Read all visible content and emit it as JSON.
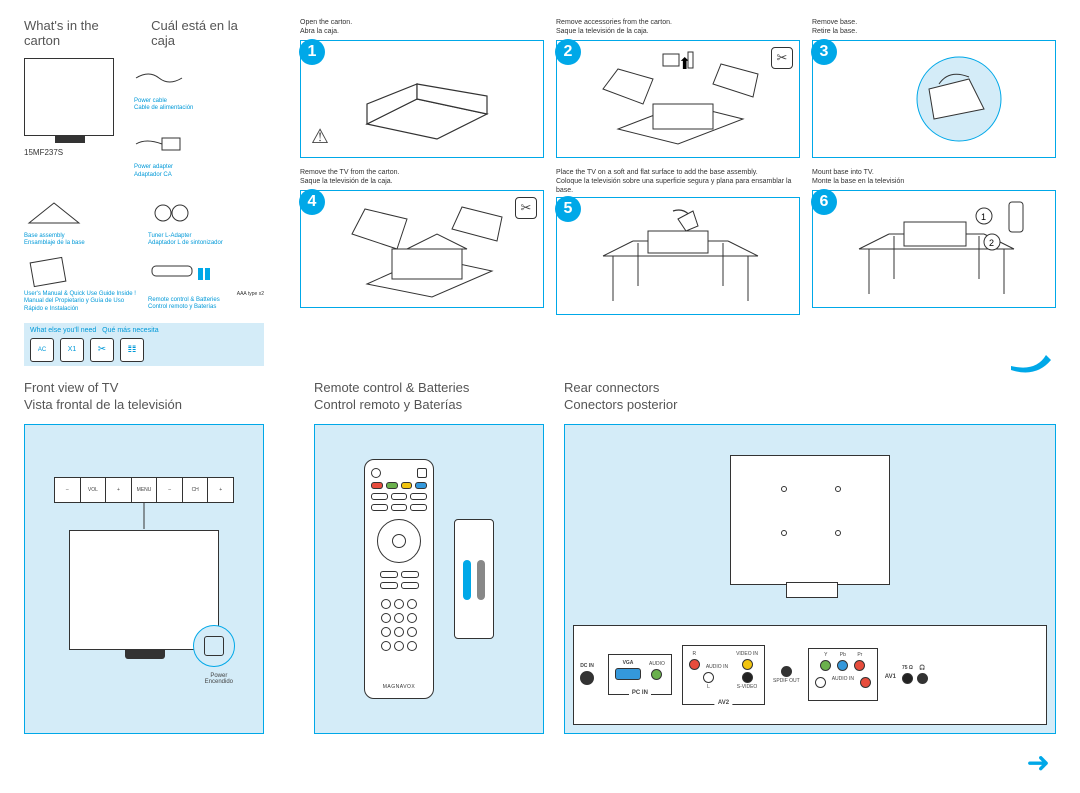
{
  "colors": {
    "accent": "#00a8e8",
    "lightBlue": "#d4ecf8",
    "linkBlue": "#0099d8",
    "text": "#444444",
    "dark": "#333333",
    "white": "#ffffff",
    "red": "#e74c3c",
    "green": "#6ab04c",
    "blue": "#3498db",
    "yellow": "#f1c40f"
  },
  "carton": {
    "title_en": "What's in the carton",
    "title_es": "Cuál está en la caja",
    "model": "15MF237S",
    "items": [
      {
        "en": "Power cable",
        "es": "Cable de alimentación"
      },
      {
        "en": "Power adapter",
        "es": "Adaptador CA"
      },
      {
        "en": "Base assembly",
        "es": "Ensamblaje de la base"
      },
      {
        "en": "Tuner L-Adapter",
        "es": "Adaptador L de sintonizador"
      },
      {
        "en": "User's Manual & Quick Use Guide Inside !",
        "es": "Manual del Propietario y Guía de Uso Rápido e Instalación"
      },
      {
        "en": "Remote control & Batteries",
        "es": "Control remoto y Baterías"
      }
    ],
    "aaa_note": "AAA type x2",
    "need_en": "What else you'll need",
    "need_es": "Qué más necesita",
    "need_icons": [
      "AC",
      "X1",
      "✂",
      "𝌮"
    ]
  },
  "steps": [
    {
      "n": "1",
      "en": "Open the carton.",
      "es": "Abra la caja.",
      "tool": null,
      "warn": true
    },
    {
      "n": "2",
      "en": "Remove accessories from the carton.",
      "es": "Saque la televisión de la caja.",
      "tool": "✂",
      "warn": false
    },
    {
      "n": "3",
      "en": "Remove base.",
      "es": "Retire la base.",
      "tool": null,
      "warn": false
    },
    {
      "n": "4",
      "en": "Remove the TV from the carton.",
      "es": "Saque la televisión de la caja.",
      "tool": "✂",
      "warn": false
    },
    {
      "n": "5",
      "en": "Place the TV on a soft and flat surface to add the base assembly.",
      "es": "Coloque la televisión sobre una superficie segura y plana para ensamblar la base.",
      "tool": null,
      "warn": false
    },
    {
      "n": "6",
      "en": "Mount base into TV.",
      "es": "Monte la base en la televisión",
      "tool": null,
      "warn": false
    }
  ],
  "front": {
    "title_en": "Front view of TV",
    "title_es": "Vista frontal de la televisión",
    "buttons": [
      "–",
      "VOL",
      "+",
      "MENU",
      "–",
      "CH",
      "+"
    ],
    "power_en": "Power",
    "power_es": "Encendido"
  },
  "remote": {
    "title_en": "Remote control & Batteries",
    "title_es": "Control remoto y Baterías",
    "brand": "MAGNAVOX"
  },
  "rear": {
    "title_en": "Rear connectors",
    "title_es": "Conectors posterior",
    "dc_in": "DC IN",
    "pc_in": "PC IN",
    "vga": "VGA",
    "audio": "AUDIO",
    "av2": "AV2",
    "audio_in_l": "L",
    "audio_in_r": "R",
    "audio_in": "AUDIO IN",
    "video_in": "VIDEO IN",
    "svideo": "S-VIDEO",
    "spdif": "SPDIF OUT",
    "audio_in2": "AUDIO IN",
    "av1": "AV1",
    "ohm": "75 Ω",
    "y": "Y",
    "pb": "Pb",
    "pr": "Pr"
  }
}
